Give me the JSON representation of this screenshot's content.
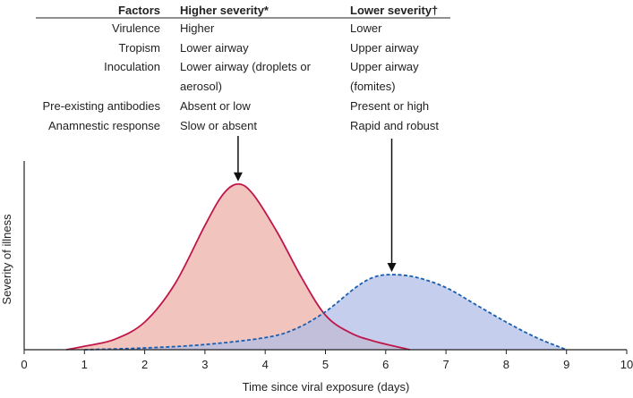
{
  "table": {
    "headers": [
      "Factors",
      "Higher severity*",
      "Lower severity†"
    ],
    "rows": [
      {
        "factor": "Virulence",
        "higher": [
          "Higher"
        ],
        "lower": [
          "Lower"
        ]
      },
      {
        "factor": "Tropism",
        "higher": [
          "Lower airway"
        ],
        "lower": [
          "Upper airway"
        ]
      },
      {
        "factor": "Inoculation",
        "higher": [
          "Lower airway (droplets or",
          "aerosol)"
        ],
        "lower": [
          "Upper airway",
          "(fomites)"
        ]
      },
      {
        "factor": "Pre-existing antibodies",
        "higher": [
          "Absent or low"
        ],
        "lower": [
          "Present or high"
        ]
      },
      {
        "factor": "Anamnestic response",
        "higher": [
          "Slow or absent"
        ],
        "lower": [
          "Rapid and robust"
        ]
      }
    ]
  },
  "chart_data": {
    "type": "area",
    "xlabel": "Time since viral exposure (days)",
    "ylabel": "Severity of illness",
    "xlim": [
      0,
      10
    ],
    "ylim": [
      0,
      1
    ],
    "x_ticks": [
      "0",
      "1",
      "2",
      "3",
      "4",
      "5",
      "6",
      "7",
      "8",
      "9",
      "10"
    ],
    "grid": false,
    "legend": "none",
    "series": [
      {
        "color": "#c0174a",
        "fill": "#f2c4be",
        "line_style": "solid",
        "points": [
          [
            0.7,
            0
          ],
          [
            1.0,
            0.02
          ],
          [
            1.5,
            0.06
          ],
          [
            2.0,
            0.16
          ],
          [
            2.5,
            0.38
          ],
          [
            3.0,
            0.72
          ],
          [
            3.3,
            0.9
          ],
          [
            3.55,
            0.96
          ],
          [
            3.8,
            0.9
          ],
          [
            4.2,
            0.68
          ],
          [
            4.6,
            0.42
          ],
          [
            5.0,
            0.2
          ],
          [
            5.4,
            0.1
          ],
          [
            5.8,
            0.05
          ],
          [
            6.4,
            0
          ]
        ],
        "peak": [
          3.55,
          0.96
        ]
      },
      {
        "color": "#1a5eb0",
        "fill": "#aebde6",
        "line_style": "dashed",
        "points": [
          [
            1.0,
            0
          ],
          [
            2.0,
            0.01
          ],
          [
            3.0,
            0.03
          ],
          [
            4.0,
            0.07
          ],
          [
            4.5,
            0.12
          ],
          [
            5.0,
            0.22
          ],
          [
            5.5,
            0.36
          ],
          [
            5.8,
            0.42
          ],
          [
            6.1,
            0.435
          ],
          [
            6.5,
            0.42
          ],
          [
            7.0,
            0.36
          ],
          [
            7.5,
            0.26
          ],
          [
            8.0,
            0.16
          ],
          [
            8.5,
            0.07
          ],
          [
            9.0,
            0
          ]
        ],
        "peak": [
          6.1,
          0.435
        ]
      }
    ]
  }
}
